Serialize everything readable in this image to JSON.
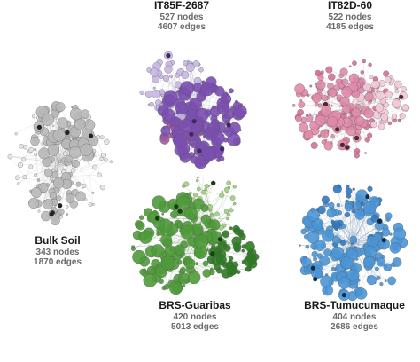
{
  "networks": [
    {
      "name": "IT85F-2687",
      "nodes_text": "527 nodes",
      "edges_text": "4607 edges",
      "palette": {
        "main": "#7a4fb0",
        "accent": "#a05a9a",
        "light": "#c7b6e3",
        "dark": "#3c2a5c",
        "edge": "#8a7aa8"
      }
    },
    {
      "name": "IT82D-60",
      "nodes_text": "522 nodes",
      "edges_text": "4185 edges",
      "palette": {
        "main": "#e08aa8",
        "accent": "#d66f95",
        "light": "#f3c9d8",
        "dark": "#4a2a36",
        "edge": "#b58a9a"
      }
    },
    {
      "name": "Bulk Soil",
      "nodes_text": "343 nodes",
      "edges_text": "1870 edges",
      "palette": {
        "main": "#b8b8b8",
        "accent": "#d7a0a8",
        "light": "#e2e2e2",
        "dark": "#222222",
        "edge": "#a0a0a0"
      }
    },
    {
      "name": "BRS-Guaribas",
      "nodes_text": "420 nodes",
      "edges_text": "5013 edges",
      "palette": {
        "main": "#4f9a3a",
        "accent": "#2f7a24",
        "light": "#9bd07c",
        "dark": "#183d14",
        "edge": "#5a8a50"
      }
    },
    {
      "name": "BRS-Tumucumaque",
      "nodes_text": "404 nodes",
      "edges_text": "2686 edges",
      "palette": {
        "main": "#4a95d6",
        "accent": "#2f78c0",
        "light": "#a8cdef",
        "dark": "#122a44",
        "edge": "#5a7fa6"
      }
    }
  ]
}
